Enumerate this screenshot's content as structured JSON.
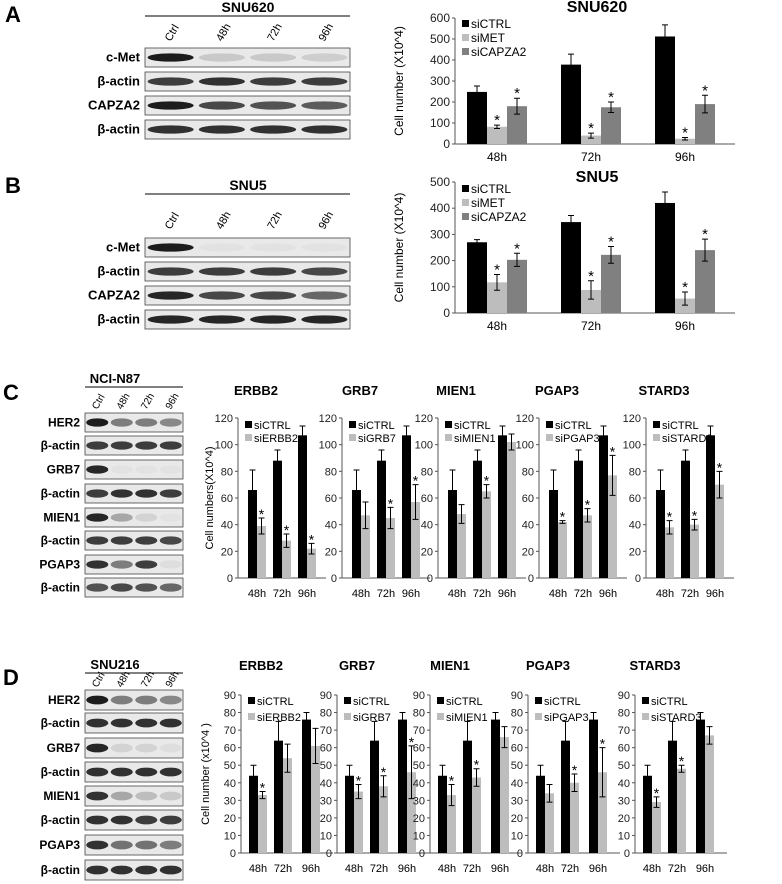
{
  "panels": [
    {
      "letter": "A",
      "blot": {
        "title": "SNU620",
        "lanes": [
          "Ctrl",
          "48h",
          "72h",
          "96h"
        ],
        "rows": [
          {
            "label": "c-Met",
            "bands": [
              0.95,
              0.15,
              0.15,
              0.12
            ]
          },
          {
            "label": "β-actin",
            "bands": [
              0.8,
              0.85,
              0.8,
              0.8
            ]
          },
          {
            "label": "CAPZA2",
            "bands": [
              0.95,
              0.75,
              0.7,
              0.65
            ]
          },
          {
            "label": "β-actin",
            "bands": [
              0.85,
              0.85,
              0.85,
              0.85
            ]
          }
        ]
      }
    },
    {
      "letter": "B",
      "blot": {
        "title": "SNU5",
        "lanes": [
          "Ctrl",
          "48h",
          "72h",
          "96h"
        ],
        "rows": [
          {
            "label": "c-Met",
            "bands": [
              0.95,
              0.03,
              0.03,
              0.03
            ]
          },
          {
            "label": "β-actin",
            "bands": [
              0.8,
              0.8,
              0.8,
              0.75
            ]
          },
          {
            "label": "CAPZA2",
            "bands": [
              0.9,
              0.75,
              0.75,
              0.6
            ]
          },
          {
            "label": "β-actin",
            "bands": [
              0.9,
              0.9,
              0.9,
              0.9
            ]
          }
        ]
      }
    },
    {
      "letter": "C",
      "blot": {
        "title": "NCI-N87",
        "lanes": [
          "Ctrl",
          "48h",
          "72h",
          "96h"
        ],
        "rows": [
          {
            "label": "HER2",
            "bands": [
              0.95,
              0.5,
              0.5,
              0.45
            ]
          },
          {
            "label": "β-actin",
            "bands": [
              0.8,
              0.8,
              0.8,
              0.8
            ]
          },
          {
            "label": "GRB7",
            "bands": [
              0.9,
              0.03,
              0.03,
              0.03
            ]
          },
          {
            "label": "β-actin",
            "bands": [
              0.8,
              0.85,
              0.85,
              0.8
            ]
          },
          {
            "label": "MIEN1",
            "bands": [
              0.9,
              0.3,
              0.1,
              0.03
            ]
          },
          {
            "label": "β-actin",
            "bands": [
              0.8,
              0.8,
              0.8,
              0.75
            ]
          },
          {
            "label": "PGAP3",
            "bands": [
              0.85,
              0.5,
              0.8,
              0.05
            ]
          },
          {
            "label": "β-actin",
            "bands": [
              0.7,
              0.75,
              0.7,
              0.6
            ]
          }
        ]
      }
    },
    {
      "letter": "D",
      "blot": {
        "title": "SNU216",
        "lanes": [
          "Ctrl",
          "48h",
          "72h",
          "96h"
        ],
        "rows": [
          {
            "label": "HER2",
            "bands": [
              0.95,
              0.5,
              0.5,
              0.45
            ]
          },
          {
            "label": "β-actin",
            "bands": [
              0.85,
              0.85,
              0.85,
              0.85
            ]
          },
          {
            "label": "GRB7",
            "bands": [
              0.9,
              0.1,
              0.1,
              0.05
            ]
          },
          {
            "label": "β-actin",
            "bands": [
              0.85,
              0.85,
              0.85,
              0.85
            ]
          },
          {
            "label": "MIEN1",
            "bands": [
              0.85,
              0.3,
              0.2,
              0.15
            ]
          },
          {
            "label": "β-actin",
            "bands": [
              0.85,
              0.85,
              0.8,
              0.8
            ]
          },
          {
            "label": "PGAP3",
            "bands": [
              0.85,
              0.55,
              0.55,
              0.5
            ]
          },
          {
            "label": "β-actin",
            "bands": [
              0.85,
              0.85,
              0.85,
              0.85
            ]
          }
        ]
      }
    }
  ],
  "chart_data": [
    {
      "type": "bar",
      "title": "SNU620",
      "ylabel": "Cell number (X10^4)",
      "ylim": [
        0,
        600
      ],
      "yticks": [
        "0",
        "100",
        "200",
        "300",
        "400",
        "500",
        "600"
      ],
      "categories": [
        "48h",
        "72h",
        "96h"
      ],
      "series": [
        {
          "name": "siCTRL",
          "color": "#000000",
          "values": [
            248,
            378,
            512
          ],
          "errors": [
            28,
            50,
            55
          ],
          "stars": [
            false,
            false,
            false
          ]
        },
        {
          "name": "siMET",
          "color": "#bdbdbd",
          "values": [
            82,
            40,
            25
          ],
          "errors": [
            8,
            12,
            6
          ],
          "stars": [
            true,
            true,
            true
          ]
        },
        {
          "name": "siCAPZA2",
          "color": "#808080",
          "values": [
            180,
            175,
            190
          ],
          "errors": [
            38,
            25,
            42
          ],
          "stars": [
            true,
            true,
            true
          ]
        }
      ]
    },
    {
      "type": "bar",
      "title": "SNU5",
      "ylabel": "Cell number (X10^4)",
      "ylim": [
        0,
        500
      ],
      "yticks": [
        "0",
        "100",
        "200",
        "300",
        "400",
        "500"
      ],
      "categories": [
        "48h",
        "72h",
        "96h"
      ],
      "series": [
        {
          "name": "siCTRL",
          "color": "#000000",
          "values": [
            270,
            347,
            420
          ],
          "errors": [
            10,
            25,
            42
          ],
          "stars": [
            false,
            false,
            false
          ]
        },
        {
          "name": "siMET",
          "color": "#bdbdbd",
          "values": [
            117,
            88,
            55
          ],
          "errors": [
            30,
            35,
            25
          ],
          "stars": [
            true,
            true,
            true
          ]
        },
        {
          "name": "siCAPZA2",
          "color": "#808080",
          "values": [
            203,
            222,
            240
          ],
          "errors": [
            25,
            32,
            42
          ],
          "stars": [
            true,
            true,
            true
          ]
        }
      ]
    },
    {
      "type": "bar",
      "title": "ERBB2",
      "ylabel": "Cell numbers(X10^4)",
      "ylim": [
        0,
        120
      ],
      "yticks": [
        "0",
        "20",
        "40",
        "60",
        "80",
        "100",
        "120"
      ],
      "categories": [
        "48h",
        "72h",
        "96h"
      ],
      "series": [
        {
          "name": "siCTRL",
          "color": "#000000",
          "values": [
            66,
            88,
            107
          ],
          "errors": [
            15,
            8,
            7
          ],
          "stars": [
            false,
            false,
            false
          ]
        },
        {
          "name": "siERBB2",
          "color": "#bdbdbd",
          "values": [
            39,
            28,
            22
          ],
          "errors": [
            6,
            5,
            4
          ],
          "stars": [
            true,
            true,
            true
          ]
        }
      ]
    },
    {
      "type": "bar",
      "title": "GRB7",
      "ylabel": "",
      "ylim": [
        0,
        120
      ],
      "yticks": [
        "0",
        "20",
        "40",
        "60",
        "80",
        "100",
        "120"
      ],
      "categories": [
        "48h",
        "72h",
        "96h"
      ],
      "series": [
        {
          "name": "siCTRL",
          "color": "#000000",
          "values": [
            66,
            88,
            107
          ],
          "errors": [
            15,
            8,
            7
          ],
          "stars": [
            false,
            false,
            false
          ]
        },
        {
          "name": "siGRB7",
          "color": "#bdbdbd",
          "values": [
            47,
            45,
            57
          ],
          "errors": [
            10,
            8,
            13
          ],
          "stars": [
            false,
            true,
            true
          ]
        }
      ]
    },
    {
      "type": "bar",
      "title": "MIEN1",
      "ylabel": "",
      "ylim": [
        0,
        120
      ],
      "yticks": [
        "0",
        "20",
        "40",
        "60",
        "80",
        "100",
        "120"
      ],
      "categories": [
        "48h",
        "72h",
        "96h"
      ],
      "series": [
        {
          "name": "siCTRL",
          "color": "#000000",
          "values": [
            66,
            88,
            107
          ],
          "errors": [
            15,
            8,
            7
          ],
          "stars": [
            false,
            false,
            false
          ]
        },
        {
          "name": "siMIEN1",
          "color": "#bdbdbd",
          "values": [
            48,
            65,
            102
          ],
          "errors": [
            7,
            5,
            6
          ],
          "stars": [
            false,
            true,
            false
          ]
        }
      ]
    },
    {
      "type": "bar",
      "title": "PGAP3",
      "ylabel": "",
      "ylim": [
        0,
        120
      ],
      "yticks": [
        "0",
        "20",
        "40",
        "60",
        "80",
        "100",
        "120"
      ],
      "categories": [
        "48h",
        "72h",
        "96h"
      ],
      "series": [
        {
          "name": "siCTRL",
          "color": "#000000",
          "values": [
            66,
            88,
            107
          ],
          "errors": [
            15,
            8,
            7
          ],
          "stars": [
            false,
            false,
            false
          ]
        },
        {
          "name": "siPGAP3",
          "color": "#bdbdbd",
          "values": [
            42,
            47,
            77
          ],
          "errors": [
            1,
            5,
            15
          ],
          "stars": [
            true,
            true,
            true
          ]
        }
      ]
    },
    {
      "type": "bar",
      "title": "STARD3",
      "ylabel": "",
      "ylim": [
        0,
        120
      ],
      "yticks": [
        "0",
        "20",
        "40",
        "60",
        "80",
        "100",
        "120"
      ],
      "categories": [
        "48h",
        "72h",
        "96h"
      ],
      "series": [
        {
          "name": "siCTRL",
          "color": "#000000",
          "values": [
            66,
            88,
            107
          ],
          "errors": [
            15,
            8,
            7
          ],
          "stars": [
            false,
            false,
            false
          ]
        },
        {
          "name": "siSTARD3",
          "color": "#bdbdbd",
          "values": [
            38,
            40,
            70
          ],
          "errors": [
            5,
            4,
            10
          ],
          "stars": [
            true,
            true,
            true
          ]
        }
      ]
    },
    {
      "type": "bar",
      "title": "ERBB2",
      "ylabel": "Cell number (x10^4 )",
      "ylim": [
        0,
        90
      ],
      "yticks": [
        "0",
        "10",
        "20",
        "30",
        "40",
        "50",
        "60",
        "70",
        "80",
        "90"
      ],
      "categories": [
        "48h",
        "72h",
        "96h"
      ],
      "series": [
        {
          "name": "siCTRL",
          "color": "#000000",
          "values": [
            44,
            64,
            76
          ],
          "errors": [
            6,
            11,
            4
          ],
          "stars": [
            false,
            false,
            false
          ]
        },
        {
          "name": "siERBB2",
          "color": "#bdbdbd",
          "values": [
            33,
            54,
            61
          ],
          "errors": [
            2,
            8,
            10
          ],
          "stars": [
            true,
            false,
            false
          ]
        }
      ]
    },
    {
      "type": "bar",
      "title": "GRB7",
      "ylabel": "",
      "ylim": [
        0,
        90
      ],
      "yticks": [
        "0",
        "10",
        "20",
        "30",
        "40",
        "50",
        "60",
        "70",
        "80",
        "90"
      ],
      "categories": [
        "48h",
        "72h",
        "96h"
      ],
      "series": [
        {
          "name": "siCTRL",
          "color": "#000000",
          "values": [
            44,
            64,
            76
          ],
          "errors": [
            6,
            11,
            4
          ],
          "stars": [
            false,
            false,
            false
          ]
        },
        {
          "name": "siGRB7",
          "color": "#bdbdbd",
          "values": [
            35,
            38,
            46
          ],
          "errors": [
            4,
            6,
            15
          ],
          "stars": [
            true,
            true,
            true
          ]
        }
      ]
    },
    {
      "type": "bar",
      "title": "MIEN1",
      "ylabel": "",
      "ylim": [
        0,
        90
      ],
      "yticks": [
        "0",
        "10",
        "20",
        "30",
        "40",
        "50",
        "60",
        "70",
        "80",
        "90"
      ],
      "categories": [
        "48h",
        "72h",
        "96h"
      ],
      "series": [
        {
          "name": "siCTRL",
          "color": "#000000",
          "values": [
            44,
            64,
            76
          ],
          "errors": [
            6,
            11,
            4
          ],
          "stars": [
            false,
            false,
            false
          ]
        },
        {
          "name": "siMIEN1",
          "color": "#bdbdbd",
          "values": [
            33,
            43,
            66
          ],
          "errors": [
            6,
            5,
            6
          ],
          "stars": [
            true,
            true,
            false
          ]
        }
      ]
    },
    {
      "type": "bar",
      "title": "PGAP3",
      "ylabel": "",
      "ylim": [
        0,
        90
      ],
      "yticks": [
        "0",
        "10",
        "20",
        "30",
        "40",
        "50",
        "60",
        "70",
        "80",
        "90"
      ],
      "categories": [
        "48h",
        "72h",
        "96h"
      ],
      "series": [
        {
          "name": "siCTRL",
          "color": "#000000",
          "values": [
            44,
            64,
            76
          ],
          "errors": [
            6,
            11,
            4
          ],
          "stars": [
            false,
            false,
            false
          ]
        },
        {
          "name": "siPGAP3",
          "color": "#bdbdbd",
          "values": [
            34,
            40,
            46
          ],
          "errors": [
            5,
            5,
            14
          ],
          "stars": [
            false,
            true,
            true
          ]
        }
      ]
    },
    {
      "type": "bar",
      "title": "STARD3",
      "ylabel": "",
      "ylim": [
        0,
        90
      ],
      "yticks": [
        "0",
        "10",
        "20",
        "30",
        "40",
        "50",
        "60",
        "70",
        "80",
        "90"
      ],
      "categories": [
        "48h",
        "72h",
        "96h"
      ],
      "series": [
        {
          "name": "siCTRL",
          "color": "#000000",
          "values": [
            44,
            64,
            76
          ],
          "errors": [
            6,
            11,
            4
          ],
          "stars": [
            false,
            false,
            false
          ]
        },
        {
          "name": "siSTARD3",
          "color": "#bdbdbd",
          "values": [
            29,
            48,
            67
          ],
          "errors": [
            3,
            2,
            5
          ],
          "stars": [
            true,
            true,
            false
          ]
        }
      ]
    }
  ],
  "star_symbol": "*"
}
